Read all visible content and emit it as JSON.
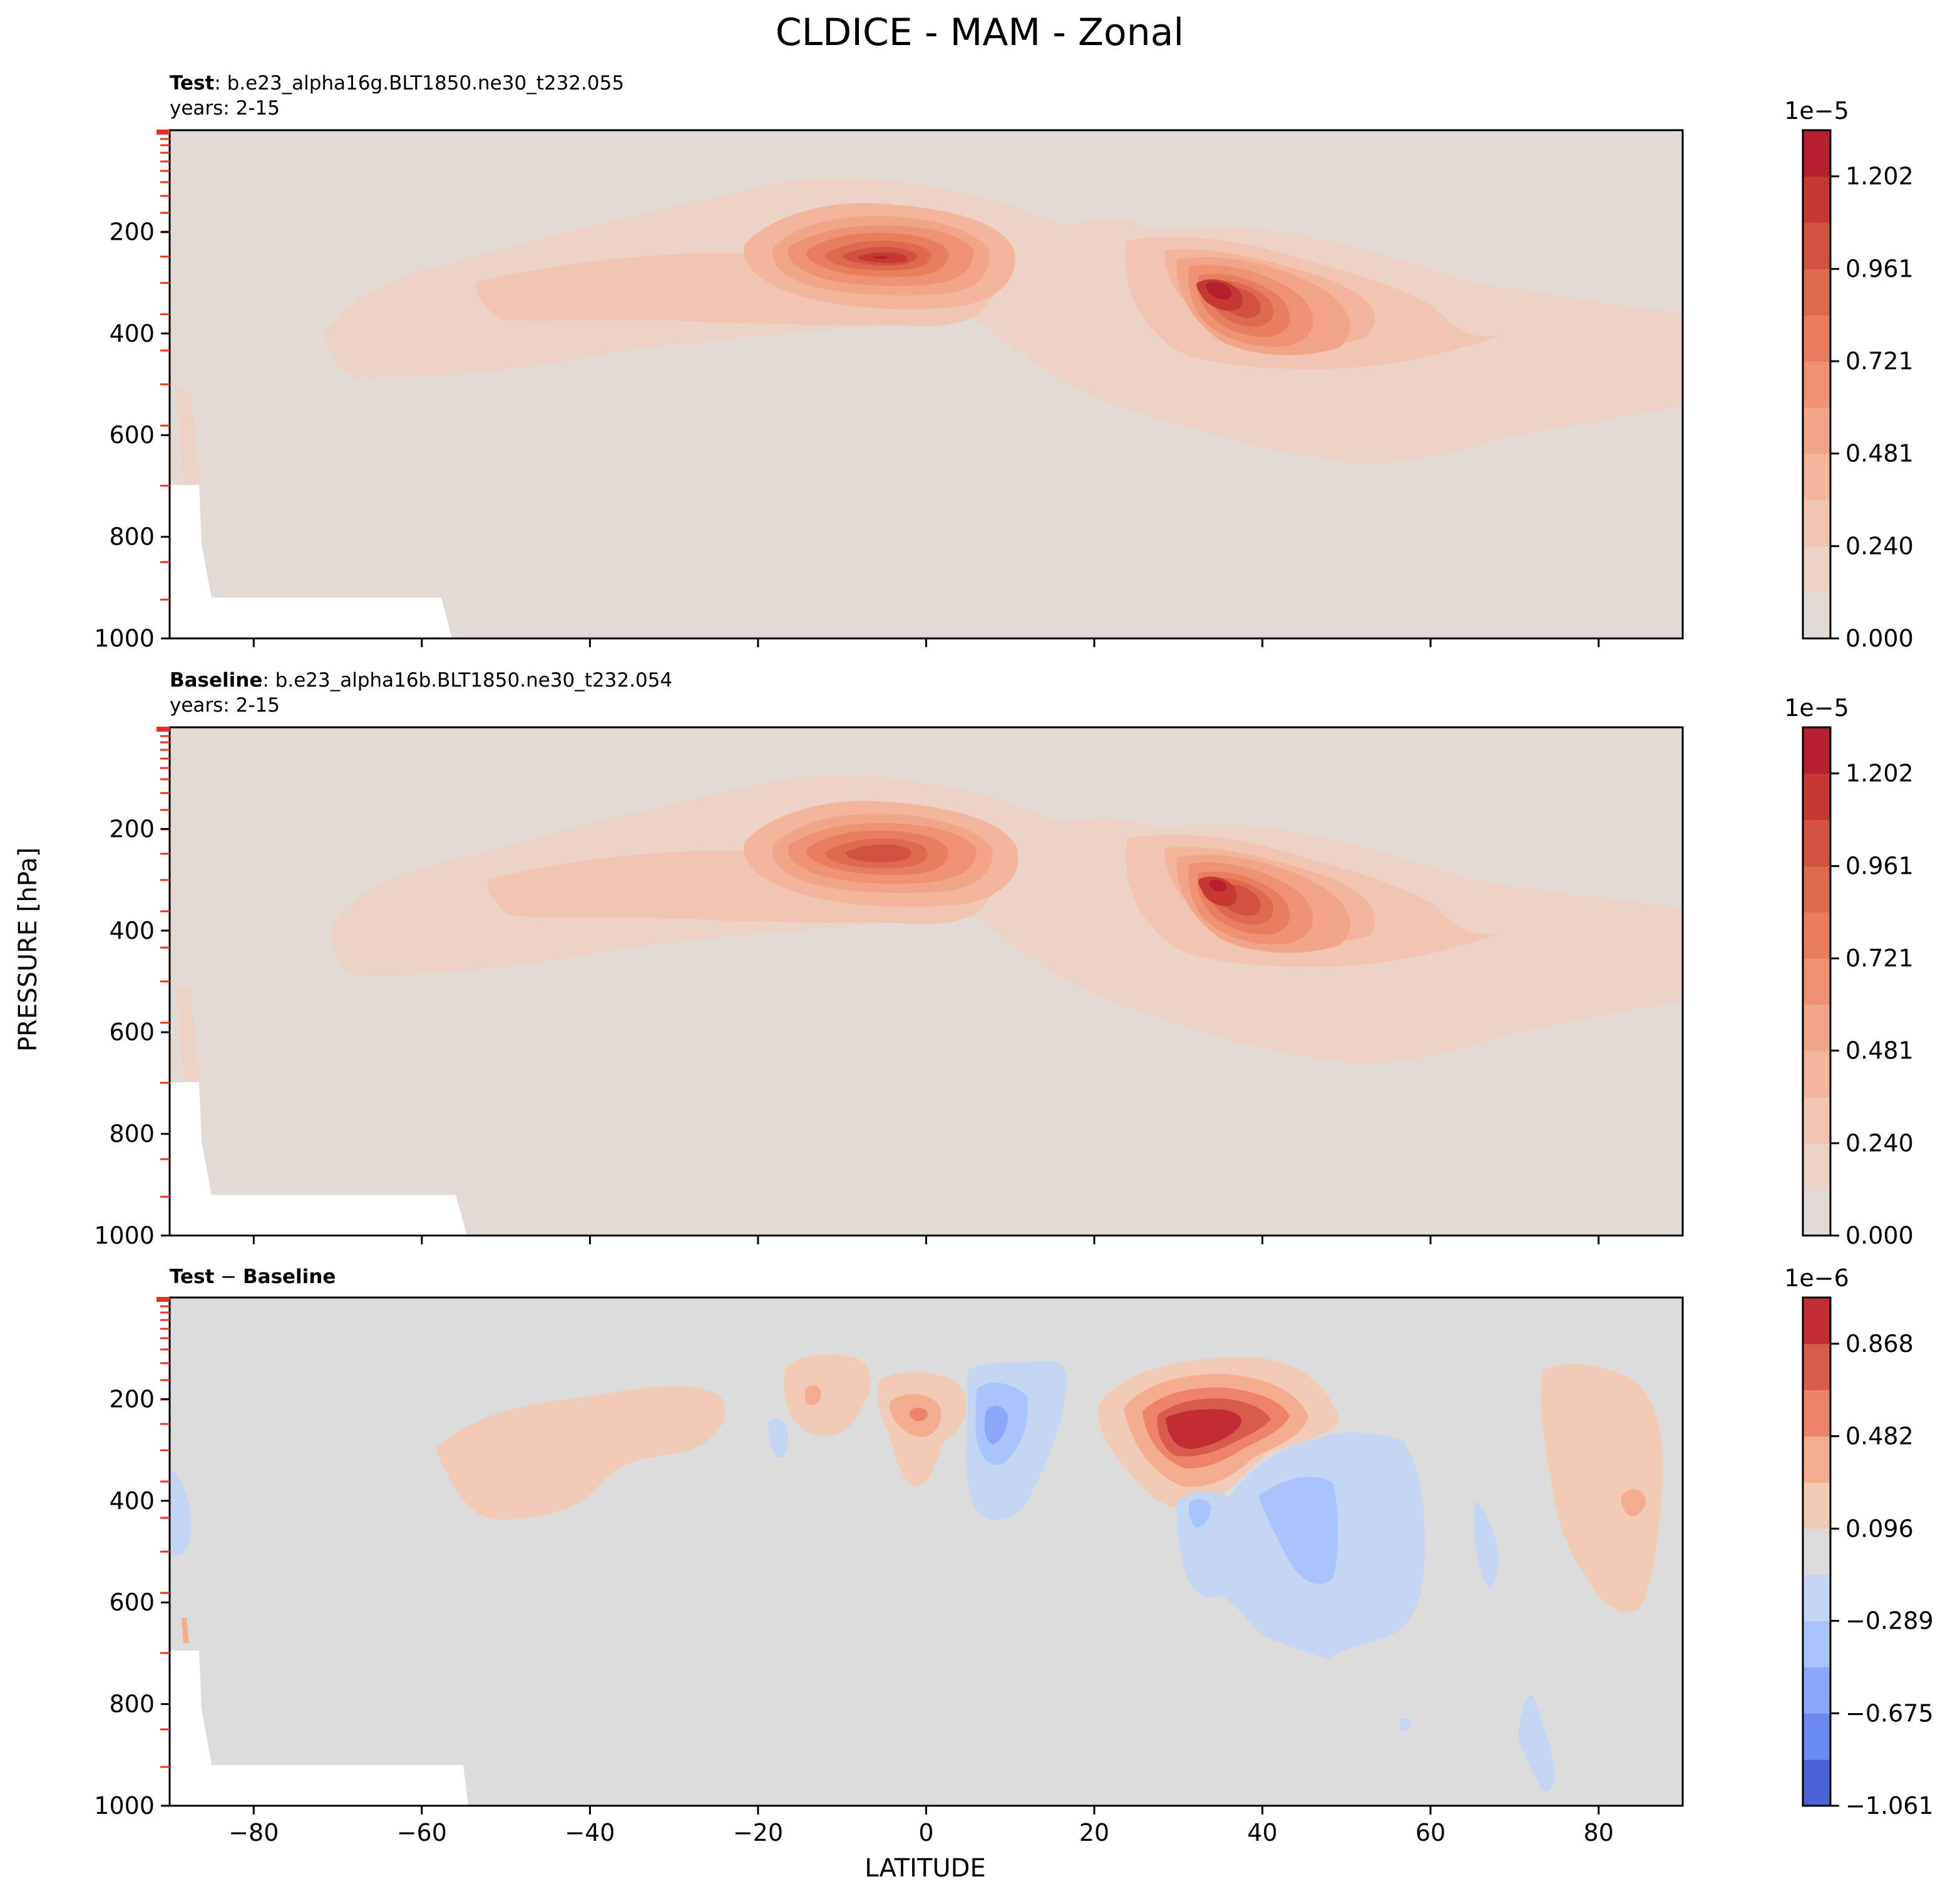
{
  "figure": {
    "title": "CLDICE - MAM - Zonal",
    "xlabel": "LATITUDE",
    "ylabel": "PRESSURE [hPa]"
  },
  "chart_data": [
    {
      "type": "heatmap",
      "subtitle_bold": "Test",
      "subtitle_rest": ": b.e23_alpha16g.BLT1850.ne30_t232.055",
      "subtitle_line2": "years: 2-15",
      "xlim": [
        -90,
        90
      ],
      "ylim": [
        1000,
        0
      ],
      "x_ticks": [
        -80,
        -60,
        -40,
        -20,
        0,
        20,
        40,
        60,
        80
      ],
      "y_ticks": [
        200,
        400,
        600,
        800,
        1000
      ],
      "colorbar": {
        "exponent_label": "1e−5",
        "scale": 1e-05,
        "tick_labels": [
          "0.000",
          "0.240",
          "0.481",
          "0.721",
          "0.961",
          "1.202"
        ],
        "levels": [
          0.0,
          0.12,
          0.24,
          0.36,
          0.481,
          0.601,
          0.721,
          0.841,
          0.961,
          1.082,
          1.202,
          1.322
        ],
        "colors": [
          "#e2dad5",
          "#ecd3c7",
          "#f0c5b2",
          "#f3b69c",
          "#f3a587",
          "#ef9271",
          "#e87e5e",
          "#de6a4e",
          "#d1533f",
          "#c43a33",
          "#b51f2e"
        ]
      },
      "max_values": [
        {
          "lat": -6,
          "p": 250,
          "value": 1.2
        },
        {
          "lat": 35,
          "p": 305,
          "value": 1.25
        }
      ]
    },
    {
      "type": "heatmap",
      "subtitle_bold": "Baseline",
      "subtitle_rest": ": b.e23_alpha16b.BLT1850.ne30_t232.054",
      "subtitle_line2": "years: 2-15",
      "xlim": [
        -90,
        90
      ],
      "ylim": [
        1000,
        0
      ],
      "x_ticks": [
        -80,
        -60,
        -40,
        -20,
        0,
        20,
        40,
        60,
        80
      ],
      "y_ticks": [
        200,
        400,
        600,
        800,
        1000
      ],
      "colorbar": {
        "exponent_label": "1e−5",
        "scale": 1e-05,
        "tick_labels": [
          "0.000",
          "0.240",
          "0.481",
          "0.721",
          "0.961",
          "1.202"
        ],
        "levels": [
          0.0,
          0.12,
          0.24,
          0.36,
          0.481,
          0.601,
          0.721,
          0.841,
          0.961,
          1.082,
          1.202,
          1.322
        ],
        "colors": [
          "#e2dad5",
          "#ecd3c7",
          "#f0c5b2",
          "#f3b69c",
          "#f3a587",
          "#ef9271",
          "#e87e5e",
          "#de6a4e",
          "#d1533f",
          "#c43a33",
          "#b51f2e"
        ]
      },
      "max_values": [
        {
          "lat": -6,
          "p": 245,
          "value": 1.15
        },
        {
          "lat": 35,
          "p": 305,
          "value": 1.2
        }
      ]
    },
    {
      "type": "heatmap",
      "subtitle_bold": "Test",
      "subtitle_sep": " − ",
      "subtitle_bold2": "Baseline",
      "xlim": [
        -90,
        90
      ],
      "ylim": [
        1000,
        0
      ],
      "x_ticks": [
        -80,
        -60,
        -40,
        -20,
        0,
        20,
        40,
        60,
        80
      ],
      "x_tick_labels": [
        "−80",
        "−60",
        "−40",
        "−20",
        "0",
        "20",
        "40",
        "60",
        "80"
      ],
      "y_ticks": [
        200,
        400,
        600,
        800,
        1000
      ],
      "colorbar": {
        "exponent_label": "1e−6",
        "scale": 1e-06,
        "tick_labels": [
          "−1.061",
          "−0.675",
          "−0.289",
          "0.096",
          "0.482",
          "0.868"
        ],
        "levels": [
          -1.061,
          -0.868,
          -0.675,
          -0.482,
          -0.289,
          -0.096,
          0.096,
          0.289,
          0.482,
          0.675,
          0.868,
          1.061
        ],
        "colors": [
          "#4c63d5",
          "#6b8af0",
          "#8aa7fb",
          "#a9c3fd",
          "#c5d6f2",
          "#dcdcdc",
          "#f2cbb7",
          "#f5ad8f",
          "#ed8468",
          "#d75d4a",
          "#c22d33"
        ]
      },
      "max_values": [
        {
          "lat": 32,
          "p": 270,
          "value": 0.9
        },
        {
          "lat": 8,
          "p": 260,
          "value": -0.7
        }
      ]
    }
  ]
}
